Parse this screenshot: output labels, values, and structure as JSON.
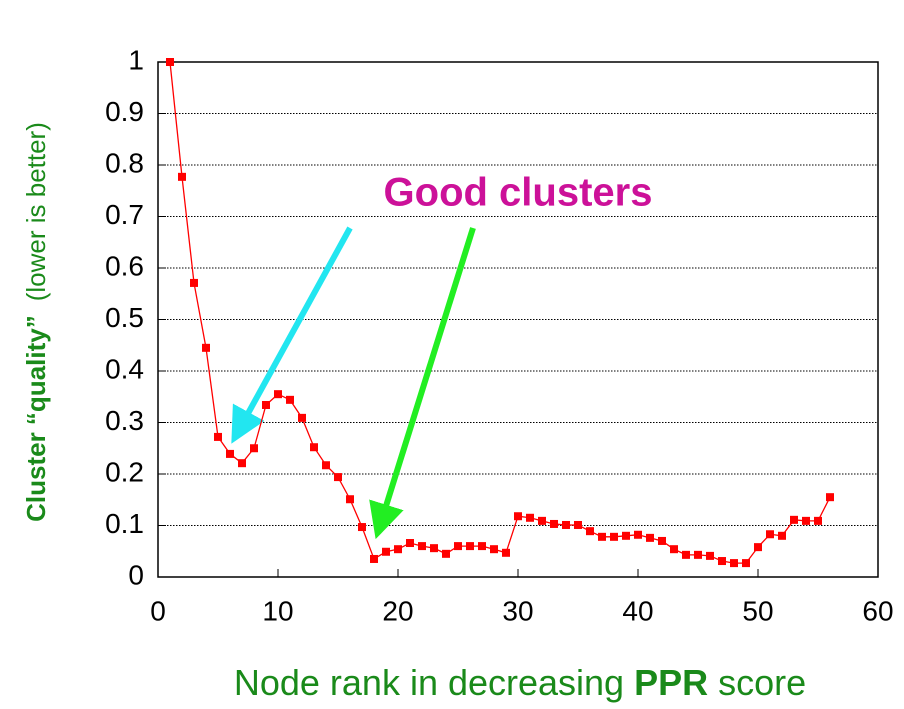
{
  "chart_data": {
    "type": "line",
    "ylabel_parts": [
      "Cluster “quality”",
      "(lower is better)"
    ],
    "xlabel_parts": [
      "Node rank in decreasing",
      "PPR",
      "score"
    ],
    "annotation": "Good clusters",
    "x": [
      1,
      2,
      3,
      4,
      5,
      6,
      7,
      8,
      9,
      10,
      11,
      12,
      13,
      14,
      15,
      16,
      17,
      18,
      19,
      20,
      21,
      22,
      23,
      24,
      25,
      26,
      27,
      28,
      29,
      30,
      31,
      32,
      33,
      34,
      35,
      36,
      37,
      38,
      39,
      40,
      41,
      42,
      43,
      44,
      45,
      46,
      47,
      48,
      49,
      50,
      51,
      52,
      53,
      54,
      55,
      56
    ],
    "series": [
      {
        "color": "#ff0000",
        "values": [
          1.0,
          0.777,
          0.571,
          0.445,
          0.272,
          0.239,
          0.221,
          0.25,
          0.334,
          0.355,
          0.344,
          0.309,
          0.252,
          0.217,
          0.194,
          0.151,
          0.097,
          0.035,
          0.049,
          0.054,
          0.066,
          0.06,
          0.056,
          0.045,
          0.06,
          0.06,
          0.06,
          0.054,
          0.047,
          0.118,
          0.115,
          0.109,
          0.103,
          0.101,
          0.101,
          0.089,
          0.078,
          0.078,
          0.08,
          0.082,
          0.076,
          0.07,
          0.054,
          0.043,
          0.043,
          0.041,
          0.031,
          0.027,
          0.027,
          0.058,
          0.083,
          0.08,
          0.111,
          0.109,
          0.109,
          0.155
        ]
      }
    ],
    "xlim": [
      0,
      60
    ],
    "xticks": [
      0,
      10,
      20,
      30,
      40,
      50,
      60
    ],
    "ylim": [
      0,
      1
    ],
    "yticks": [
      0,
      0.1,
      0.2,
      0.3,
      0.4,
      0.5,
      0.6,
      0.7,
      0.8,
      0.9,
      1
    ],
    "grid": true
  }
}
